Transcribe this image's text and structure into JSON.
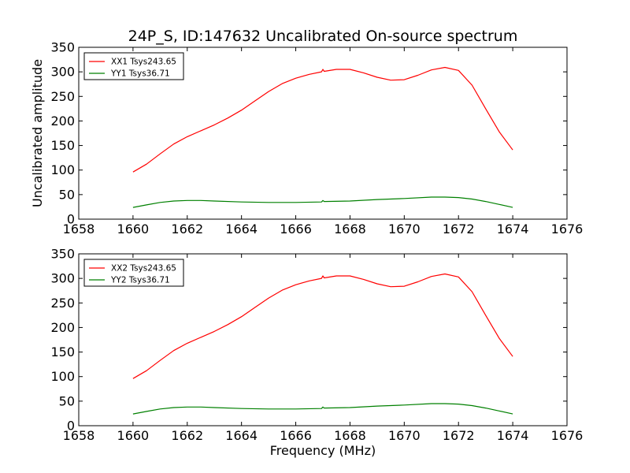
{
  "title": "24P_S, ID:147632 Uncalibrated On-source spectrum",
  "ylabel": "Uncalibrated amplitude",
  "xlabel": "Frequency (MHz)",
  "colors": {
    "xx": "#ff0000",
    "yy": "#008000"
  },
  "chart_data": [
    {
      "type": "line",
      "xlim": [
        1658,
        1676
      ],
      "ylim": [
        0,
        350
      ],
      "x_ticks": [
        1658,
        1660,
        1662,
        1664,
        1666,
        1668,
        1670,
        1672,
        1674,
        1676
      ],
      "y_ticks": [
        0,
        50,
        100,
        150,
        200,
        250,
        300,
        350
      ],
      "legend_position": "top-left",
      "grid": false,
      "series": [
        {
          "name": "XX1 Tsys243.65",
          "color": "#ff0000",
          "x": [
            1660.0,
            1660.5,
            1661.0,
            1661.5,
            1662.0,
            1662.5,
            1663.0,
            1663.5,
            1664.0,
            1664.5,
            1665.0,
            1665.5,
            1666.0,
            1666.5,
            1666.95,
            1667.0,
            1667.05,
            1667.5,
            1668.0,
            1668.5,
            1669.0,
            1669.5,
            1670.0,
            1670.5,
            1671.0,
            1671.5,
            1672.0,
            1672.5,
            1673.0,
            1673.5,
            1674.0
          ],
          "y": [
            96,
            112,
            133,
            153,
            168,
            180,
            192,
            206,
            222,
            241,
            260,
            276,
            287,
            295,
            300,
            305,
            301,
            305,
            305,
            298,
            289,
            283,
            284,
            293,
            304,
            309,
            303,
            273,
            225,
            178,
            141
          ]
        },
        {
          "name": "YY1 Tsys36.71",
          "color": "#008000",
          "x": [
            1660.0,
            1660.5,
            1661.0,
            1661.5,
            1662.0,
            1662.5,
            1663.0,
            1664.0,
            1665.0,
            1666.0,
            1666.95,
            1667.0,
            1667.05,
            1668.0,
            1669.0,
            1670.0,
            1671.0,
            1671.5,
            1672.0,
            1672.5,
            1673.0,
            1673.5,
            1674.0
          ],
          "y": [
            24,
            29,
            34,
            37,
            38,
            38,
            37,
            35,
            34,
            34,
            35,
            38,
            36,
            37,
            40,
            42,
            45,
            45,
            44,
            41,
            36,
            30,
            24
          ]
        }
      ]
    },
    {
      "type": "line",
      "xlim": [
        1658,
        1676
      ],
      "ylim": [
        0,
        350
      ],
      "x_ticks": [
        1658,
        1660,
        1662,
        1664,
        1666,
        1668,
        1670,
        1672,
        1674,
        1676
      ],
      "y_ticks": [
        0,
        50,
        100,
        150,
        200,
        250,
        300,
        350
      ],
      "legend_position": "top-left",
      "grid": false,
      "series": [
        {
          "name": "XX2 Tsys243.65",
          "color": "#ff0000",
          "x": [
            1660.0,
            1660.5,
            1661.0,
            1661.5,
            1662.0,
            1662.5,
            1663.0,
            1663.5,
            1664.0,
            1664.5,
            1665.0,
            1665.5,
            1666.0,
            1666.5,
            1666.95,
            1667.0,
            1667.05,
            1667.5,
            1668.0,
            1668.5,
            1669.0,
            1669.5,
            1670.0,
            1670.5,
            1671.0,
            1671.5,
            1672.0,
            1672.5,
            1673.0,
            1673.5,
            1674.0
          ],
          "y": [
            96,
            112,
            133,
            153,
            168,
            180,
            192,
            206,
            222,
            241,
            260,
            276,
            287,
            295,
            300,
            305,
            301,
            305,
            305,
            298,
            289,
            283,
            284,
            293,
            304,
            309,
            303,
            273,
            225,
            178,
            141
          ]
        },
        {
          "name": "YY2 Tsys36.71",
          "color": "#008000",
          "x": [
            1660.0,
            1660.5,
            1661.0,
            1661.5,
            1662.0,
            1662.5,
            1663.0,
            1664.0,
            1665.0,
            1666.0,
            1666.95,
            1667.0,
            1667.05,
            1668.0,
            1669.0,
            1670.0,
            1671.0,
            1671.5,
            1672.0,
            1672.5,
            1673.0,
            1673.5,
            1674.0
          ],
          "y": [
            24,
            29,
            34,
            37,
            38,
            38,
            37,
            35,
            34,
            34,
            35,
            38,
            36,
            37,
            40,
            42,
            45,
            45,
            44,
            41,
            36,
            30,
            24
          ]
        }
      ]
    }
  ]
}
